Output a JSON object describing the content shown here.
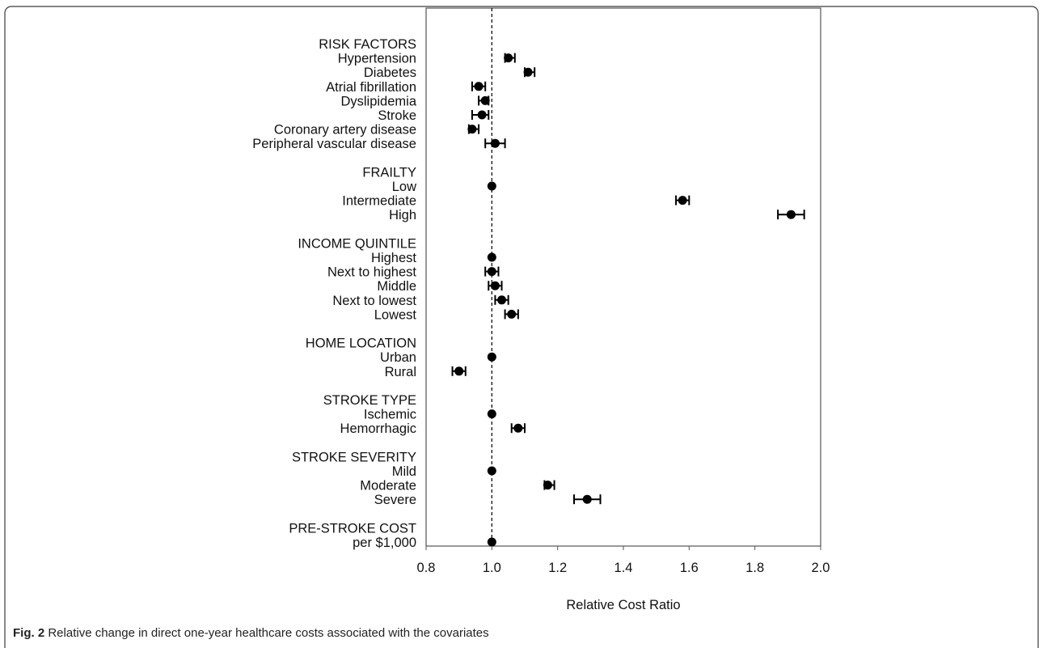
{
  "caption": {
    "label": "Fig. 2",
    "text": "Relative change in direct one-year healthcare costs associated with the covariates"
  },
  "chart_data": {
    "type": "scatter",
    "subtype": "forest-plot",
    "xlabel": "Relative Cost Ratio",
    "xlim": [
      0.8,
      2.0
    ],
    "xticks": [
      0.8,
      1.0,
      1.2,
      1.4,
      1.6,
      1.8,
      2.0
    ],
    "xtick_labels": [
      "0.8",
      "1.0",
      "1.2",
      "1.4",
      "1.6",
      "1.8",
      "2.0"
    ],
    "reference_line": 1.0,
    "grid": false,
    "legend": "none",
    "marker_color": "#000000",
    "groups": [
      {
        "header": "RISK FACTORS",
        "items": [
          {
            "label": "Hypertension",
            "value": 1.05,
            "low": 1.04,
            "high": 1.07
          },
          {
            "label": "Diabetes",
            "value": 1.11,
            "low": 1.1,
            "high": 1.13
          },
          {
            "label": "Atrial fibrillation",
            "value": 0.96,
            "low": 0.94,
            "high": 0.98
          },
          {
            "label": "Dyslipidemia",
            "value": 0.98,
            "low": 0.96,
            "high": 0.99
          },
          {
            "label": "Stroke",
            "value": 0.97,
            "low": 0.94,
            "high": 0.99
          },
          {
            "label": "Coronary artery disease",
            "value": 0.94,
            "low": 0.93,
            "high": 0.96
          },
          {
            "label": "Peripheral vascular disease",
            "value": 1.01,
            "low": 0.98,
            "high": 1.04
          }
        ]
      },
      {
        "header": "FRAILTY",
        "items": [
          {
            "label": "Low",
            "value": 1.0
          },
          {
            "label": "Intermediate",
            "value": 1.58,
            "low": 1.56,
            "high": 1.6
          },
          {
            "label": "High",
            "value": 1.91,
            "low": 1.87,
            "high": 1.95
          }
        ]
      },
      {
        "header": "INCOME QUINTILE",
        "items": [
          {
            "label": "Highest",
            "value": 1.0
          },
          {
            "label": "Next to highest",
            "value": 1.0,
            "low": 0.98,
            "high": 1.02
          },
          {
            "label": "Middle",
            "value": 1.01,
            "low": 0.99,
            "high": 1.03
          },
          {
            "label": "Next to lowest",
            "value": 1.03,
            "low": 1.01,
            "high": 1.05
          },
          {
            "label": "Lowest",
            "value": 1.06,
            "low": 1.04,
            "high": 1.08
          }
        ]
      },
      {
        "header": "HOME LOCATION",
        "items": [
          {
            "label": "Urban",
            "value": 1.0
          },
          {
            "label": "Rural",
            "value": 0.9,
            "low": 0.88,
            "high": 0.92
          }
        ]
      },
      {
        "header": "STROKE TYPE",
        "items": [
          {
            "label": "Ischemic",
            "value": 1.0
          },
          {
            "label": "Hemorrhagic",
            "value": 1.08,
            "low": 1.06,
            "high": 1.1
          }
        ]
      },
      {
        "header": "STROKE SEVERITY",
        "items": [
          {
            "label": "Mild",
            "value": 1.0
          },
          {
            "label": "Moderate",
            "value": 1.17,
            "low": 1.16,
            "high": 1.19
          },
          {
            "label": "Severe",
            "value": 1.29,
            "low": 1.25,
            "high": 1.33
          }
        ]
      },
      {
        "header": "PRE-STROKE COST",
        "items": [
          {
            "label": "per $1,000",
            "value": 1.0
          }
        ]
      }
    ]
  }
}
